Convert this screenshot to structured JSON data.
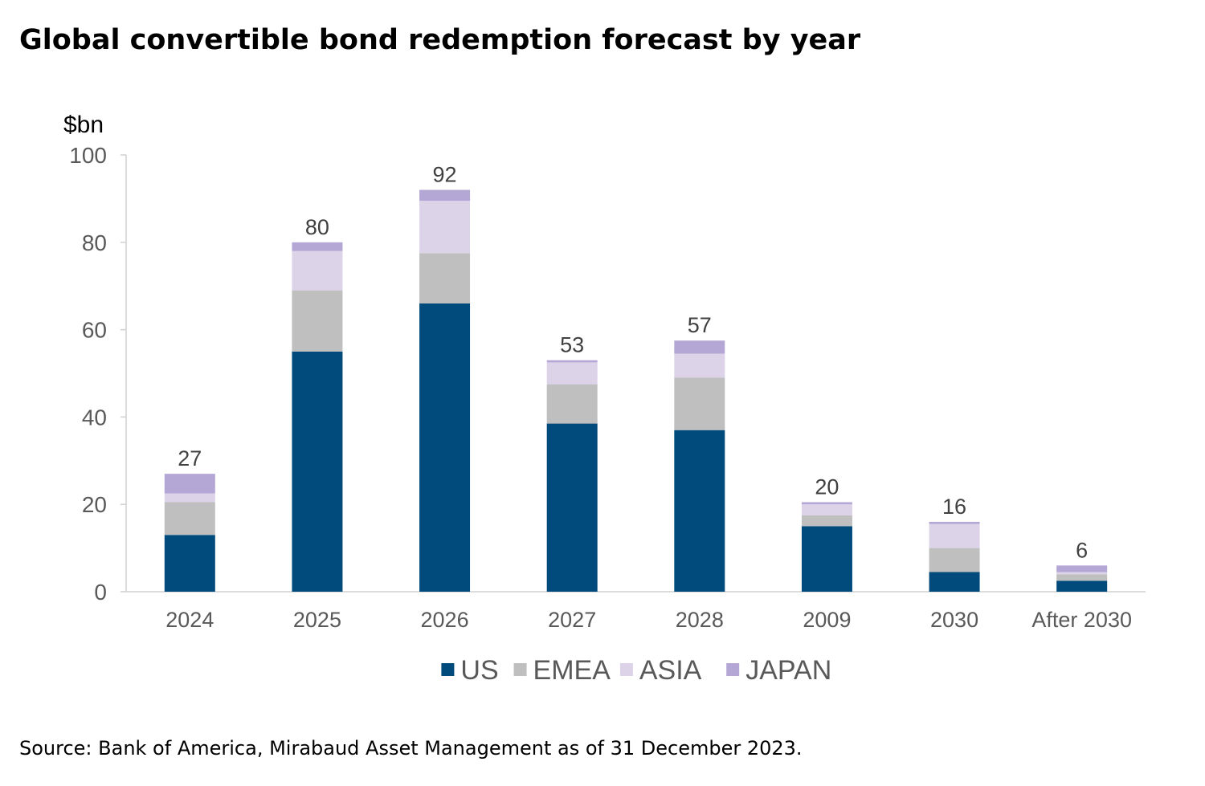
{
  "title": "Global convertible bond redemption forecast by year",
  "source": "Source: Bank of America, Mirabaud Asset Management as of 31 December 2023.",
  "colors": {
    "US": "#004a7c",
    "EMEA": "#bfbfbf",
    "ASIA": "#dcd3e9",
    "JAPAN": "#b4a7d6",
    "axis": "#d0d0d0",
    "tick_text": "#595959",
    "label_text": "#404040"
  },
  "chart_data": {
    "type": "bar",
    "stacked": true,
    "ylabel": "$bn",
    "xlabel": "",
    "ylim": [
      0,
      100
    ],
    "yticks": [
      0,
      20,
      40,
      60,
      80,
      100
    ],
    "grid": false,
    "legend_position": "bottom",
    "categories": [
      "2024",
      "2025",
      "2026",
      "2027",
      "2028",
      "2009",
      "2030",
      "After 2030"
    ],
    "series": [
      {
        "name": "US",
        "values": [
          13,
          55,
          66,
          38.5,
          37,
          15,
          4.5,
          2.5
        ]
      },
      {
        "name": "EMEA",
        "values": [
          7.5,
          14,
          11.5,
          9,
          12,
          2.5,
          5.5,
          1.5
        ]
      },
      {
        "name": "ASIA",
        "values": [
          2,
          9,
          12,
          5,
          5.5,
          2.5,
          5.5,
          0.5
        ]
      },
      {
        "name": "JAPAN",
        "values": [
          4.5,
          2,
          2.5,
          0.5,
          3,
          0.5,
          0.5,
          1.5
        ]
      }
    ],
    "totals": [
      "27",
      "80",
      "92",
      "53",
      "57",
      "20",
      "16",
      "6"
    ]
  }
}
